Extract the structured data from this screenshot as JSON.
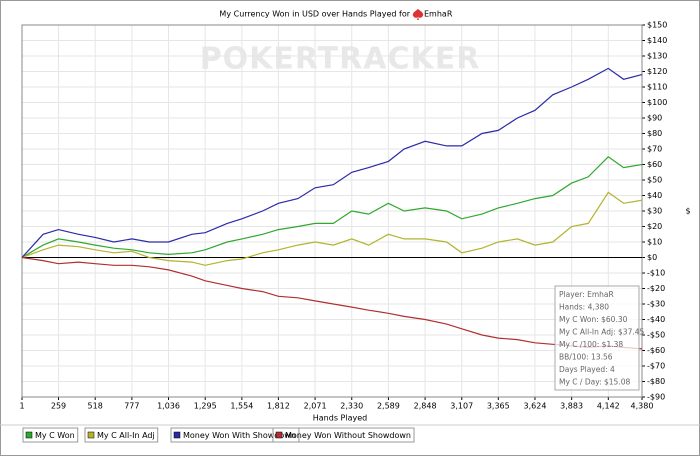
{
  "chart_data": {
    "type": "line",
    "title": "My Currency Won in USD over Hands Played for",
    "player": "EmhaR",
    "watermark": "POKERTRACKER",
    "x_label": "Hands Played",
    "y_label": "$",
    "x": [
      1,
      150,
      259,
      400,
      518,
      650,
      777,
      900,
      1036,
      1200,
      1295,
      1450,
      1554,
      1700,
      1812,
      1950,
      2071,
      2200,
      2330,
      2450,
      2589,
      2700,
      2848,
      3000,
      3107,
      3250,
      3365,
      3500,
      3624,
      3750,
      3883,
      4000,
      4142,
      4250,
      4380
    ],
    "series": [
      {
        "name": "My C Won",
        "color": "#2fa82f",
        "values": [
          0,
          8,
          12,
          10,
          8,
          6,
          5,
          3,
          2,
          3,
          5,
          10,
          12,
          15,
          18,
          20,
          22,
          22,
          30,
          28,
          35,
          30,
          32,
          30,
          25,
          28,
          32,
          35,
          38,
          40,
          48,
          52,
          65,
          58,
          60
        ]
      },
      {
        "name": "My C All-In Adj",
        "color": "#b3b32e",
        "values": [
          0,
          5,
          8,
          7,
          5,
          3,
          4,
          0,
          -2,
          -3,
          -5,
          -2,
          -1,
          3,
          5,
          8,
          10,
          8,
          12,
          8,
          15,
          12,
          12,
          10,
          3,
          6,
          10,
          12,
          8,
          10,
          20,
          22,
          42,
          35,
          37
        ]
      },
      {
        "name": "Money Won With Showdown",
        "color": "#2a2aa8",
        "values": [
          0,
          15,
          18,
          15,
          13,
          10,
          12,
          10,
          10,
          15,
          16,
          22,
          25,
          30,
          35,
          38,
          45,
          47,
          55,
          58,
          62,
          70,
          75,
          72,
          72,
          80,
          82,
          90,
          95,
          105,
          110,
          115,
          122,
          115,
          118
        ]
      },
      {
        "name": "Money Won Without Showdown",
        "color": "#b03030",
        "values": [
          0,
          -2,
          -4,
          -3,
          -4,
          -5,
          -5,
          -6,
          -8,
          -12,
          -15,
          -18,
          -20,
          -22,
          -25,
          -26,
          -28,
          -30,
          -32,
          -34,
          -36,
          -38,
          -40,
          -43,
          -46,
          -50,
          -52,
          -53,
          -55,
          -56,
          -57,
          -58,
          -57,
          -58,
          -59
        ]
      }
    ],
    "xlim": [
      1,
      4380
    ],
    "xticks": [
      1,
      259,
      518,
      777,
      {
        "value": 1036,
        "label": "1,036"
      },
      {
        "value": 1295,
        "label": "1,295"
      },
      {
        "value": 1554,
        "label": "1,554"
      },
      {
        "value": 1812,
        "label": "1,812"
      },
      {
        "value": 2071,
        "label": "2,071"
      },
      {
        "value": 2330,
        "label": "2,330"
      },
      {
        "value": 2589,
        "label": "2,589"
      },
      {
        "value": 2848,
        "label": "2,848"
      },
      {
        "value": 3107,
        "label": "3,107"
      },
      {
        "value": 3365,
        "label": "3,365"
      },
      {
        "value": 3624,
        "label": "3,624"
      },
      {
        "value": 3883,
        "label": "3,883"
      },
      {
        "value": 4142,
        "label": "4,142"
      },
      {
        "value": 4380,
        "label": "4,380"
      }
    ],
    "ylim": [
      -90,
      150
    ],
    "yticks": [
      {
        "value": 150,
        "label": "$150"
      },
      {
        "value": 140,
        "label": "$140"
      },
      {
        "value": 130,
        "label": "$130"
      },
      {
        "value": 120,
        "label": "$120"
      },
      {
        "value": 110,
        "label": "$110"
      },
      {
        "value": 100,
        "label": "$100"
      },
      {
        "value": 90,
        "label": "$90"
      },
      {
        "value": 80,
        "label": "$80"
      },
      {
        "value": 70,
        "label": "$70"
      },
      {
        "value": 60,
        "label": "$60"
      },
      {
        "value": 50,
        "label": "$50"
      },
      {
        "value": 40,
        "label": "$40"
      },
      {
        "value": 30,
        "label": "$30"
      },
      {
        "value": 20,
        "label": "$20"
      },
      {
        "value": 10,
        "label": "$10"
      },
      {
        "value": 0,
        "label": "$0"
      },
      {
        "value": -10,
        "label": "-$10"
      },
      {
        "value": -20,
        "label": "-$20"
      },
      {
        "value": -30,
        "label": "-$30"
      },
      {
        "value": -40,
        "label": "-$40"
      },
      {
        "value": -50,
        "label": "-$50"
      },
      {
        "value": -60,
        "label": "-$60"
      },
      {
        "value": -70,
        "label": "-$70"
      },
      {
        "value": -80,
        "label": "-$80"
      },
      {
        "value": -90,
        "label": "-$90"
      }
    ],
    "grid": true,
    "stats": [
      "Player: EmhaR",
      "Hands: 4,380",
      "My C Won: $60.30",
      "My C All-In Adj: $37.45",
      "My C /100: $1.38",
      "BB/100: 13.56",
      "Days Played: 4",
      "My C / Day: $15.08"
    ]
  }
}
